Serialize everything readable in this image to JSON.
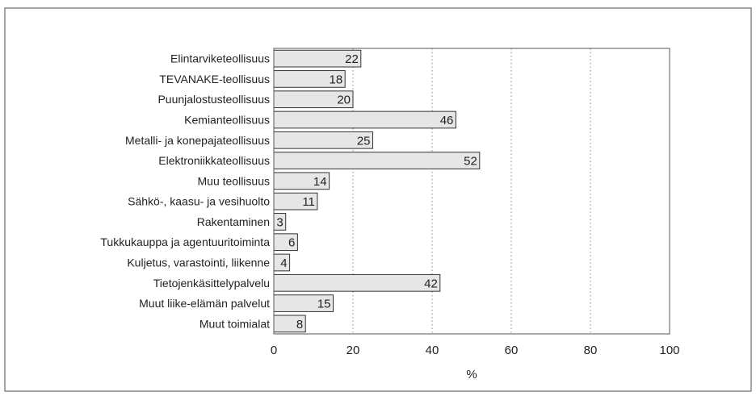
{
  "chart_data": {
    "type": "bar",
    "orientation": "horizontal",
    "categories": [
      "Elintarviketeollisuus",
      "TEVANAKE-teollisuus",
      "Puunjalostusteollisuus",
      "Kemianteollisuus",
      "Metalli- ja konepajateollisuus",
      "Elektroniikkateollisuus",
      "Muu teollisuus",
      "Sähkö-, kaasu- ja vesihuolto",
      "Rakentaminen",
      "Tukkukauppa ja agentuuritoiminta",
      "Kuljetus, varastointi, liikenne",
      "Tietojenkäsittelypalvelu",
      "Muut liike-elämän palvelut",
      "Muut toimialat"
    ],
    "values": [
      22,
      18,
      20,
      46,
      25,
      52,
      14,
      11,
      3,
      6,
      4,
      42,
      15,
      8
    ],
    "xlabel": "%",
    "ylabel": "",
    "title": "",
    "xlim": [
      0,
      100
    ],
    "xticks": [
      0,
      20,
      40,
      60,
      80,
      100
    ],
    "grid": "vertical dotted",
    "data_labels": true,
    "colors": {
      "bar_fill": "#e6e6e6",
      "bar_stroke": "#333333",
      "frame": "#555555",
      "grid": "#888888"
    }
  }
}
